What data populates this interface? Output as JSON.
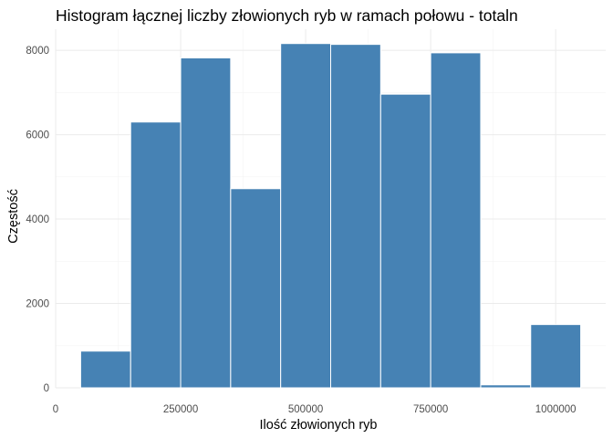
{
  "chart_data": {
    "type": "bar",
    "title": "Histogram łącznej liczby złowionych ryb w ramach połowu - totaln",
    "xlabel": "Ilość złowionych ryb",
    "ylabel": "Częstość",
    "bar_color": "#4682b4",
    "grid": true,
    "xlim": [
      0,
      1100000
    ],
    "ylim": [
      0,
      8500
    ],
    "x_ticks": [
      0,
      250000,
      500000,
      750000,
      1000000
    ],
    "x_tick_labels": [
      "0",
      "250000",
      "500000",
      "750000",
      "1000000"
    ],
    "y_ticks": [
      0,
      2000,
      4000,
      6000,
      8000
    ],
    "y_tick_labels": [
      "0",
      "2000",
      "4000",
      "6000",
      "8000"
    ],
    "bins": [
      {
        "x_start": 50000,
        "x_end": 150000,
        "value": 870
      },
      {
        "x_start": 150000,
        "x_end": 250000,
        "value": 6300
      },
      {
        "x_start": 250000,
        "x_end": 350000,
        "value": 7820
      },
      {
        "x_start": 350000,
        "x_end": 450000,
        "value": 4720
      },
      {
        "x_start": 450000,
        "x_end": 550000,
        "value": 8160
      },
      {
        "x_start": 550000,
        "x_end": 650000,
        "value": 8140
      },
      {
        "x_start": 650000,
        "x_end": 750000,
        "value": 6960
      },
      {
        "x_start": 750000,
        "x_end": 850000,
        "value": 7940
      },
      {
        "x_start": 850000,
        "x_end": 950000,
        "value": 70
      },
      {
        "x_start": 950000,
        "x_end": 1050000,
        "value": 1500
      }
    ]
  }
}
